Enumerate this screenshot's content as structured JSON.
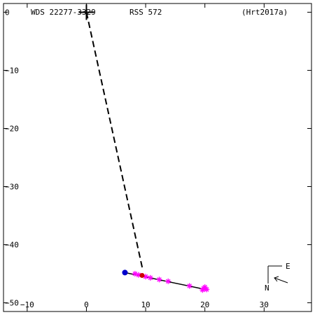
{
  "header": {
    "wds_id": "WDS 22277-3329",
    "discoverer": "RSS 572",
    "orbit_ref": "(Hrt2017a)"
  },
  "compass": {
    "east_label": "E",
    "north_label": "N"
  },
  "chart_data": {
    "type": "scatter",
    "title": "",
    "xlabel": "",
    "ylabel": "",
    "xlim": [
      -14,
      38
    ],
    "ylim": [
      -51.5,
      1.5
    ],
    "x_ticks": [
      -10,
      0,
      10,
      20,
      30
    ],
    "y_ticks": [
      0,
      -10,
      -20,
      -30,
      -40,
      -50
    ],
    "x_tick_labels": [
      "−10",
      "0",
      "10",
      "20",
      "30"
    ],
    "y_tick_labels": [
      "0",
      "−10",
      "−20",
      "−30",
      "−40",
      "−50"
    ],
    "grid": false,
    "colors": {
      "orbit": "#000000",
      "measures": "#ff00ff",
      "first_obs": "#0000cc",
      "last_obs": "#cc0000"
    },
    "primary": {
      "x": 0,
      "y": 0
    },
    "node_line": {
      "from": [
        0,
        0
      ],
      "to": [
        9.5,
        -44.3
      ]
    },
    "orbit_line": [
      [
        6.5,
        -44.8
      ],
      [
        20.5,
        -47.8
      ]
    ],
    "first_observation": {
      "x": 6.5,
      "y": -44.8
    },
    "last_observation": {
      "x": 9.4,
      "y": -45.3
    },
    "series": [
      {
        "values": [
          [
            8.2,
            -45.0
          ],
          [
            8.8,
            -45.2
          ],
          [
            10.0,
            -45.5
          ],
          [
            10.8,
            -45.7
          ],
          [
            12.3,
            -46.0
          ],
          [
            13.8,
            -46.3
          ],
          [
            17.4,
            -47.1
          ],
          [
            19.8,
            -47.5
          ],
          [
            20.0,
            -47.3
          ],
          [
            20.3,
            -47.7
          ],
          [
            19.6,
            -47.8
          ]
        ]
      }
    ]
  }
}
